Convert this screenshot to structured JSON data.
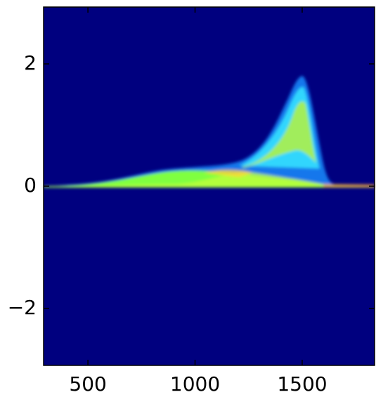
{
  "chart_data": {
    "type": "heatmap",
    "background": "#00007f",
    "xlim": [
      293,
      1838
    ],
    "xticks": [
      500,
      1000,
      1500
    ],
    "ylim": [
      -2.93,
      2.93
    ],
    "yticks": [
      {
        "value": -2,
        "label": "−2"
      },
      0,
      2
    ]
  }
}
